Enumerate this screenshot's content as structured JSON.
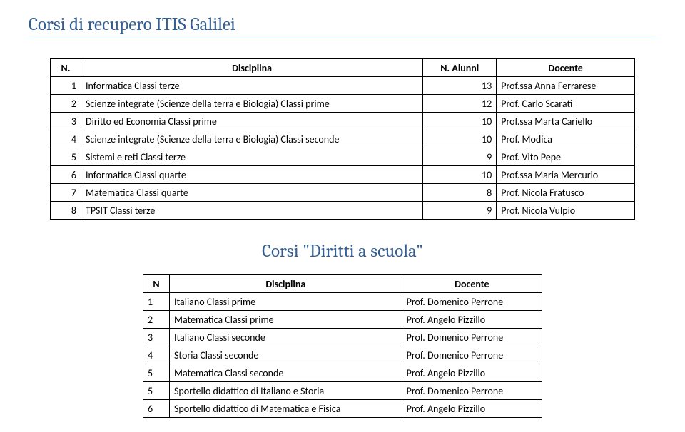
{
  "page_title": "Corsi di recupero ITIS Galilei",
  "table1": {
    "columns": [
      "N.",
      "Disciplina",
      "N. Alunni",
      "Docente"
    ],
    "rows": [
      [
        "1",
        "Informatica Classi terze",
        "13",
        "Prof.ssa Anna Ferrarese"
      ],
      [
        "2",
        "Scienze integrate (Scienze della terra e Biologia) Classi prime",
        "12",
        "Prof. Carlo Scarati"
      ],
      [
        "3",
        "Diritto ed Economia Classi prime",
        "10",
        "Prof.ssa Marta Cariello"
      ],
      [
        "4",
        "Scienze integrate (Scienze della terra e Biologia) Classi seconde",
        "10",
        "Prof. Modica"
      ],
      [
        "5",
        "Sistemi e reti Classi terze",
        "9",
        "Prof. Vito Pepe"
      ],
      [
        "6",
        "Informatica Classi quarte",
        "10",
        "Prof.ssa Maria Mercurio"
      ],
      [
        "7",
        "Matematica Classi quarte",
        "8",
        "Prof. Nicola Fratusco"
      ],
      [
        "8",
        "TPSIT Classi terze",
        "9",
        "Prof. Nicola Vulpio"
      ]
    ]
  },
  "section_title": "Corsi \"Diritti a scuola\"",
  "table2": {
    "columns": [
      "N",
      "Disciplina",
      "Docente"
    ],
    "rows": [
      [
        "1",
        "Italiano Classi prime",
        "Prof. Domenico Perrone"
      ],
      [
        "2",
        "Matematica Classi prime",
        "Prof. Angelo Pizzillo"
      ],
      [
        "3",
        "Italiano Classi seconde",
        "Prof. Domenico Perrone"
      ],
      [
        "4",
        "Storia Classi seconde",
        "Prof. Domenico Perrone"
      ],
      [
        "5",
        "Matematica Classi seconde",
        "Prof. Angelo Pizzillo"
      ],
      [
        "5",
        "Sportello didattico di Italiano e Storia",
        "Prof. Domenico Perrone"
      ],
      [
        "6",
        "Sportello didattico di Matematica e Fisica",
        "Prof. Angelo Pizzillo"
      ]
    ]
  }
}
